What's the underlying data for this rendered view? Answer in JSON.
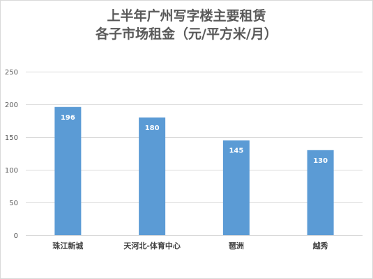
{
  "chart_data": {
    "type": "bar",
    "title": "上半年广州写字楼主要租赁\n各子市场租金（元/平方米/月）",
    "categories": [
      "珠江新城",
      "天河北-体育中心",
      "琶洲",
      "越秀"
    ],
    "values": [
      196,
      180,
      145,
      130
    ],
    "data_labels": [
      "196",
      "180",
      "145",
      "130"
    ],
    "ylim": [
      0,
      250
    ],
    "yticks": [
      0,
      50,
      100,
      150,
      200,
      250
    ],
    "grid": true,
    "legend": "none",
    "bar_color": "#5b9bd5",
    "grid_color": "#d9d9d9",
    "label_color": "#ffffff"
  }
}
